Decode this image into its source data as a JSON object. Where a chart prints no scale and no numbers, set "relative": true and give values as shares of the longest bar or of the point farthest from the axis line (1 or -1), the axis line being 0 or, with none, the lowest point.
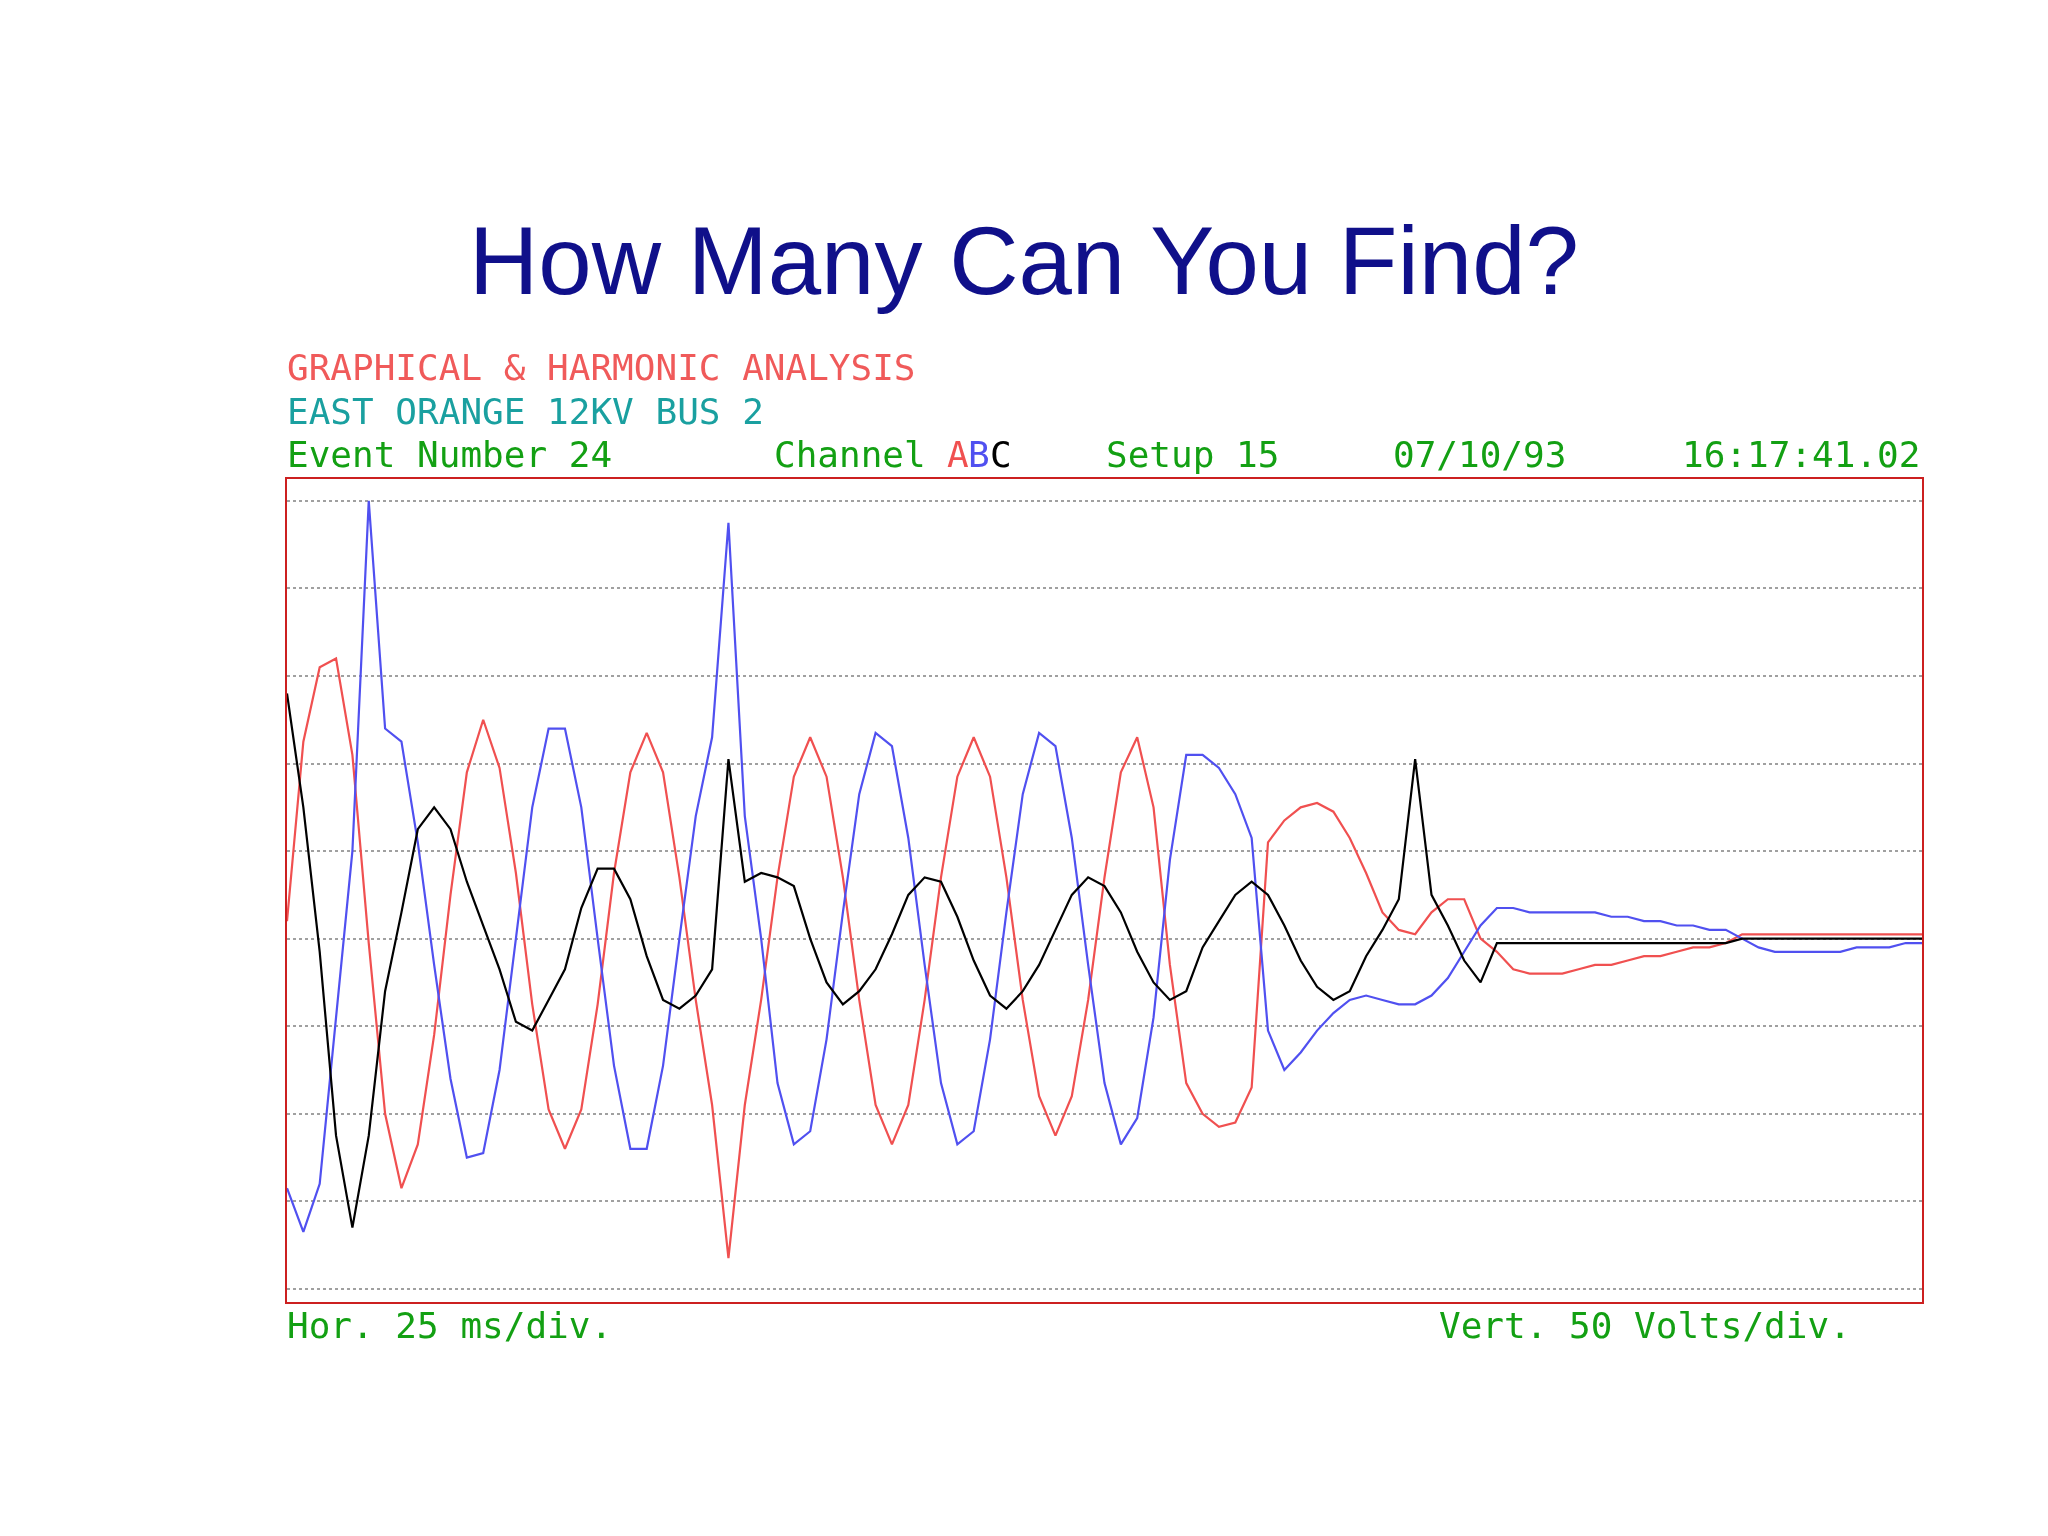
{
  "chart_data": {
    "type": "line",
    "title": "How Many Can You Find?",
    "relative": true,
    "grid": true,
    "legend": false,
    "annotations": [
      "GRAPHICAL & HARMONIC ANALYSIS",
      "EAST ORANGE 12KV BUS 2",
      "Event Number 24",
      "Channel",
      "Setup 15",
      "07/10/93",
      "16:17:41.02",
      "Hor. 25 ms/div.",
      "Vert. 50 Volts/div."
    ],
    "categories": [
      null,
      null,
      null,
      null,
      null,
      null,
      null,
      null,
      null,
      null,
      null,
      null,
      null,
      null,
      null,
      null,
      null,
      null,
      null,
      null,
      null,
      null,
      null,
      null,
      null,
      null,
      null,
      null,
      null,
      null,
      null,
      null,
      null,
      null,
      null,
      null,
      null,
      null,
      null,
      null,
      null,
      null,
      null,
      null,
      null,
      null,
      null,
      null,
      null,
      null,
      null,
      null,
      null,
      null,
      null,
      null,
      null,
      null,
      null,
      null,
      null,
      null,
      null,
      null,
      null,
      null,
      null,
      null,
      null,
      null,
      null,
      null,
      null,
      null,
      null,
      null,
      null,
      null,
      null,
      null,
      null,
      null,
      null,
      null,
      null,
      null,
      null,
      null,
      null,
      null,
      null,
      null,
      null,
      null,
      null,
      null,
      null,
      null,
      null,
      null,
      null
    ],
    "series": [
      {
        "name": "A",
        "color": "#f05050",
        "values": [
          0.04,
          0.45,
          0.62,
          0.64,
          0.42,
          -0.01,
          -0.4,
          -0.57,
          -0.47,
          -0.22,
          0.1,
          0.38,
          0.5,
          0.39,
          0.15,
          -0.15,
          -0.39,
          -0.48,
          -0.39,
          -0.15,
          0.15,
          0.38,
          0.47,
          0.38,
          0.14,
          -0.14,
          -0.38,
          -0.73,
          -0.38,
          -0.14,
          0.14,
          0.37,
          0.46,
          0.37,
          0.14,
          -0.14,
          -0.38,
          -0.47,
          -0.38,
          -0.14,
          0.14,
          0.37,
          0.46,
          0.37,
          0.14,
          -0.14,
          -0.36,
          -0.45,
          -0.36,
          -0.14,
          0.14,
          0.38,
          0.46,
          0.3,
          -0.06,
          -0.33,
          -0.4,
          -0.43,
          -0.42,
          -0.34,
          0.22,
          0.27,
          0.3,
          0.31,
          0.29,
          0.23,
          0.15,
          0.06,
          0.02,
          0.01,
          0.06,
          0.09,
          0.09,
          0.0,
          -0.03,
          -0.07,
          -0.08,
          -0.08,
          -0.08,
          -0.07,
          -0.06,
          -0.06,
          -0.05,
          -0.04,
          -0.04,
          -0.03,
          -0.02,
          -0.02,
          -0.01,
          0.01,
          0.01,
          0.01,
          0.01,
          0.01,
          0.01,
          0.01,
          0.01,
          0.01,
          0.01,
          0.01,
          0.01
        ]
      },
      {
        "name": "B",
        "color": "#5050f0",
        "values": [
          -0.57,
          -0.67,
          -0.56,
          -0.18,
          0.2,
          1.0,
          0.48,
          0.45,
          0.22,
          -0.06,
          -0.32,
          -0.5,
          -0.49,
          -0.3,
          0.0,
          0.3,
          0.48,
          0.48,
          0.3,
          0.0,
          -0.29,
          -0.48,
          -0.48,
          -0.29,
          0.0,
          0.28,
          0.46,
          0.95,
          0.28,
          0.0,
          -0.33,
          -0.47,
          -0.44,
          -0.23,
          0.06,
          0.33,
          0.47,
          0.44,
          0.23,
          -0.06,
          -0.33,
          -0.47,
          -0.44,
          -0.23,
          0.06,
          0.33,
          0.47,
          0.44,
          0.23,
          -0.06,
          -0.33,
          -0.47,
          -0.41,
          -0.18,
          0.18,
          0.42,
          0.42,
          0.39,
          0.33,
          0.23,
          -0.21,
          -0.3,
          -0.26,
          -0.21,
          -0.17,
          -0.14,
          -0.13,
          -0.14,
          -0.15,
          -0.15,
          -0.13,
          -0.09,
          -0.03,
          0.03,
          0.07,
          0.07,
          0.06,
          0.06,
          0.06,
          0.06,
          0.06,
          0.05,
          0.05,
          0.04,
          0.04,
          0.03,
          0.03,
          0.02,
          0.02,
          0.0,
          -0.02,
          -0.03,
          -0.03,
          -0.03,
          -0.03,
          -0.03,
          -0.02,
          -0.02,
          -0.02,
          -0.01,
          -0.01
        ]
      },
      {
        "name": "C",
        "color": "#000000",
        "values": [
          0.56,
          0.3,
          -0.03,
          -0.45,
          -0.66,
          -0.45,
          -0.12,
          0.06,
          0.25,
          0.3,
          0.25,
          0.13,
          0.03,
          -0.07,
          -0.19,
          -0.21,
          -0.14,
          -0.07,
          0.07,
          0.16,
          0.16,
          0.09,
          -0.04,
          -0.14,
          -0.16,
          -0.13,
          -0.07,
          0.41,
          0.13,
          0.15,
          0.14,
          0.12,
          0.0,
          -0.1,
          -0.15,
          -0.12,
          -0.07,
          0.01,
          0.1,
          0.14,
          0.13,
          0.05,
          -0.05,
          -0.13,
          -0.16,
          -0.12,
          -0.06,
          0.02,
          0.1,
          0.14,
          0.12,
          0.06,
          -0.03,
          -0.1,
          -0.14,
          -0.12,
          -0.02,
          0.04,
          0.1,
          0.13,
          0.1,
          0.03,
          -0.05,
          -0.11,
          -0.14,
          -0.12,
          -0.04,
          0.02,
          0.09,
          0.41,
          0.1,
          0.03,
          -0.05,
          -0.1,
          -0.01,
          -0.01,
          -0.01,
          -0.01,
          -0.01,
          -0.01,
          -0.01,
          -0.01,
          -0.01,
          -0.01,
          -0.01,
          -0.01,
          -0.01,
          -0.01,
          -0.01,
          0.0,
          0.0,
          0.0,
          0.0,
          0.0,
          0.0,
          0.0,
          0.0,
          0.0,
          0.0,
          0.0,
          0.0
        ]
      }
    ]
  }
}
